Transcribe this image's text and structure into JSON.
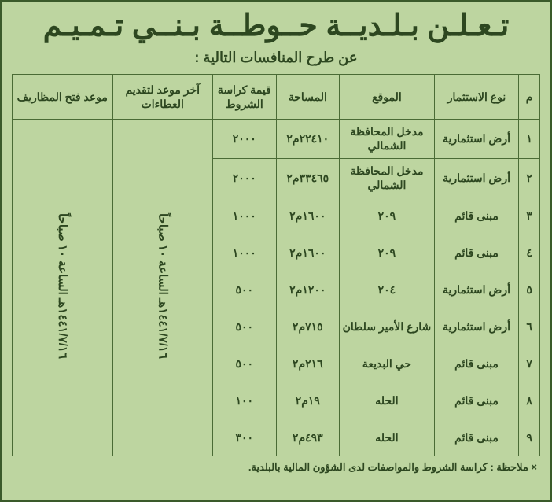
{
  "colors": {
    "bg": "#bdd5a0",
    "border": "#3a5a2a",
    "cell_border": "#4a6b35",
    "text": "#2d4720"
  },
  "title": "تـعـلـن بـلـديــة حــوطــة بـنــي تـمـيـم",
  "subtitle": "عن طرح المنافسات التالية :",
  "headers": {
    "num": "م",
    "type": "نوع الاستثمار",
    "location": "الموقع",
    "area": "المساحة",
    "price": "قيمة كراسة الشروط",
    "deadline": "آخر موعد لتقديم العطاءات",
    "open": "موعد فتح المظاريف"
  },
  "rows": [
    {
      "num": "١",
      "type": "أرض استثمارية",
      "location": "مدخل المحافظة الشمالي",
      "area": "٢٢٤١٠م٢",
      "price": "٢٠٠٠"
    },
    {
      "num": "٢",
      "type": "أرض استثمارية",
      "location": "مدخل المحافظة الشمالي",
      "area": "٣٣٤٦٥م٢",
      "price": "٢٠٠٠"
    },
    {
      "num": "٣",
      "type": "مبنى قائم",
      "location": "٢٠٩",
      "area": "١٦٠٠م٢",
      "price": "١٠٠٠"
    },
    {
      "num": "٤",
      "type": "مبنى قائم",
      "location": "٢٠٩",
      "area": "١٦٠٠م٢",
      "price": "١٠٠٠"
    },
    {
      "num": "٥",
      "type": "أرض استثمارية",
      "location": "٢٠٤",
      "area": "١٢٠٠م٢",
      "price": "٥٠٠"
    },
    {
      "num": "٦",
      "type": "أرض استثمارية",
      "location": "شارع الأمير سلطان",
      "area": "٧١٥م٢",
      "price": "٥٠٠"
    },
    {
      "num": "٧",
      "type": "مبنى قائم",
      "location": "حي البديعة",
      "area": "٢١٦م٢",
      "price": "٥٠٠"
    },
    {
      "num": "٨",
      "type": "مبنى قائم",
      "location": "الحله",
      "area": "١٩م٢",
      "price": "١٠٠"
    },
    {
      "num": "٩",
      "type": "مبنى قائم",
      "location": "الحله",
      "area": "٤٩٣م٢",
      "price": "٣٠٠"
    }
  ],
  "deadline_text": "١٤٤١/٧/١٦هـ الساعة ١٠ صباحاً",
  "open_text": "١٤٤١/٧/١٦هـ الساعة ١٠ صباحاً",
  "note": "× ملاحظة : كراسة الشروط والمواصفات لدى الشؤون المالية بالبلدية."
}
